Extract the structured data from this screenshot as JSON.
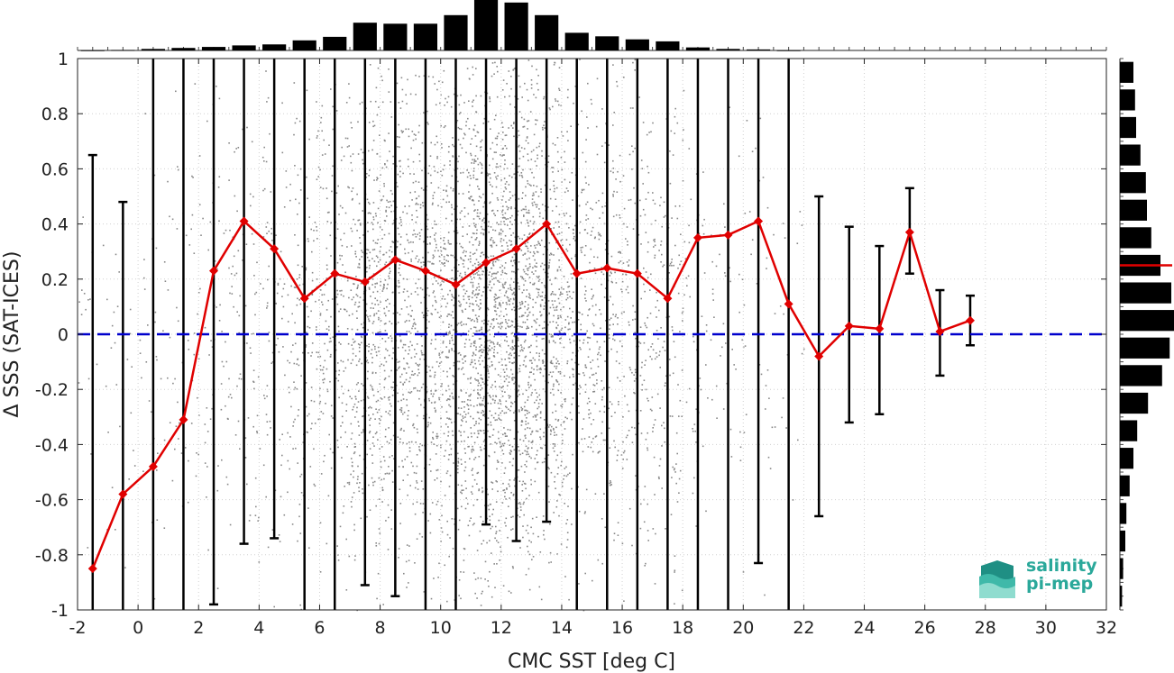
{
  "logo": {
    "line1": "salinity",
    "line2": "pi-mep",
    "color": "#2aa89a"
  },
  "chart_data": {
    "type": "scatter",
    "xlabel": "CMC SST [deg C]",
    "ylabel": "Δ SSS (SAT-ICES)",
    "xlim": [
      -2,
      32
    ],
    "ylim": [
      -1,
      1
    ],
    "xticks": [
      -2,
      0,
      2,
      4,
      6,
      8,
      10,
      12,
      14,
      16,
      18,
      20,
      22,
      24,
      26,
      28,
      30,
      32
    ],
    "xtick_labels": [
      "-2",
      "0",
      "2",
      "4",
      "6",
      "8",
      "10",
      "12",
      "14",
      "16",
      "18",
      "20",
      "22",
      "24",
      "26",
      "28",
      "30",
      "32"
    ],
    "yticks": [
      -1,
      -0.8,
      -0.6,
      -0.4,
      -0.2,
      0,
      0.2,
      0.4,
      0.6,
      0.8,
      1
    ],
    "ytick_labels": [
      "-1",
      "-0.8",
      "-0.6",
      "-0.4",
      "-0.2",
      "0",
      "0.2",
      "0.4",
      "0.6",
      "0.8",
      "1"
    ],
    "grid": true,
    "colors": {
      "mean_line": "#e00000",
      "zero_line": "#0000cc",
      "errorbar": "#000000",
      "scatter": "#888888",
      "hist": "#000000"
    },
    "series": [
      {
        "type": "line-with-errorbars",
        "x": [
          -1.5,
          -0.5,
          0.5,
          1.5,
          2.5,
          3.5,
          4.5,
          5.5,
          6.5,
          7.5,
          8.5,
          9.5,
          10.5,
          11.5,
          12.5,
          13.5,
          14.5,
          15.5,
          16.5,
          17.5,
          18.5,
          19.5,
          20.5,
          21.5,
          22.5,
          23.5,
          24.5,
          25.5,
          26.5,
          27.5
        ],
        "y": [
          -0.85,
          -0.58,
          -0.48,
          -0.31,
          0.23,
          0.41,
          0.31,
          0.13,
          0.22,
          0.19,
          0.27,
          0.23,
          0.18,
          0.26,
          0.31,
          0.4,
          0.22,
          0.24,
          0.22,
          0.13,
          0.35,
          0.36,
          0.41,
          0.11,
          -0.08,
          0.03,
          0.02,
          0.37,
          0.01,
          0.05
        ],
        "err_low": [
          -1.0,
          -1.0,
          -1.0,
          -1.0,
          -0.98,
          -0.76,
          -0.74,
          -1.0,
          -1.0,
          -0.91,
          -0.95,
          -1.0,
          -1.0,
          -0.69,
          -0.75,
          -0.68,
          -1.0,
          -1.0,
          -1.0,
          -1.0,
          -1.0,
          -1.0,
          -0.83,
          -1.0,
          -0.66,
          -0.32,
          -0.29,
          0.22,
          -0.15,
          -0.04
        ],
        "err_high": [
          0.65,
          0.48,
          1.0,
          1.0,
          1.0,
          1.0,
          1.0,
          1.0,
          1.0,
          1.0,
          1.0,
          1.0,
          1.0,
          1.0,
          1.0,
          1.0,
          1.0,
          1.0,
          1.0,
          1.0,
          1.0,
          1.0,
          1.0,
          1.0,
          0.5,
          0.39,
          0.32,
          0.53,
          0.16,
          0.14
        ]
      },
      {
        "type": "hline",
        "y": 0,
        "style": "dashed"
      }
    ],
    "top_histogram": {
      "x": [
        -1.5,
        -0.5,
        0.5,
        1.5,
        2.5,
        3.5,
        4.5,
        5.5,
        6.5,
        7.5,
        8.5,
        9.5,
        10.5,
        11.5,
        12.5,
        13.5,
        14.5,
        15.5,
        16.5,
        17.5,
        18.5,
        19.5,
        20.5,
        21.5,
        22.5,
        23.5,
        24.5,
        25.5,
        26.5,
        27.5
      ],
      "counts_relative": [
        0.005,
        0.01,
        0.03,
        0.05,
        0.07,
        0.1,
        0.12,
        0.2,
        0.27,
        0.55,
        0.53,
        0.53,
        0.7,
        1.0,
        0.95,
        0.7,
        0.35,
        0.28,
        0.22,
        0.18,
        0.06,
        0.03,
        0.02,
        0.005,
        0,
        0,
        0,
        0,
        0,
        0
      ]
    },
    "right_histogram": {
      "y": [
        0.95,
        0.85,
        0.75,
        0.65,
        0.55,
        0.45,
        0.35,
        0.25,
        0.15,
        0.05,
        -0.05,
        -0.15,
        -0.25,
        -0.35,
        -0.45,
        -0.55,
        -0.65,
        -0.75,
        -0.85,
        -0.95
      ],
      "counts_relative": [
        0.25,
        0.28,
        0.3,
        0.38,
        0.48,
        0.5,
        0.58,
        0.75,
        0.95,
        1.0,
        0.92,
        0.78,
        0.52,
        0.32,
        0.25,
        0.18,
        0.12,
        0.1,
        0.06,
        0.04
      ],
      "mean_marker_y": 0.25
    }
  }
}
